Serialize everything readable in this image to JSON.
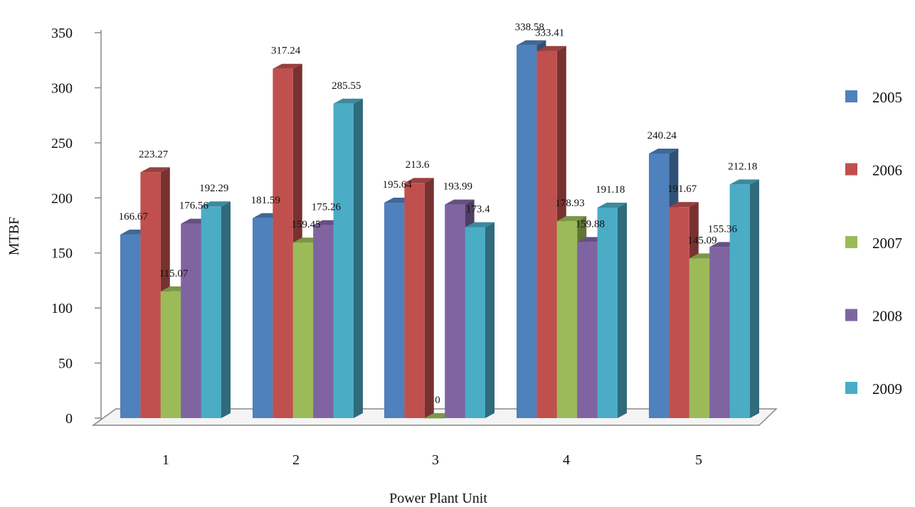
{
  "chart_data": {
    "type": "bar",
    "title": "",
    "xlabel": "Power Plant Unit",
    "ylabel": "MTBF",
    "ylim": [
      0,
      350
    ],
    "yticks": [
      0,
      50,
      100,
      150,
      200,
      250,
      300,
      350
    ],
    "categories": [
      "1",
      "2",
      "3",
      "4",
      "5"
    ],
    "series": [
      {
        "name": "2005",
        "color": "#4F81BD",
        "values": [
          166.67,
          181.59,
          195.64,
          338.58,
          240.24
        ]
      },
      {
        "name": "2006",
        "color": "#C0504D",
        "values": [
          223.27,
          317.24,
          213.6,
          333.41,
          191.67
        ]
      },
      {
        "name": "2007",
        "color": "#9BBB59",
        "values": [
          115.07,
          159.45,
          0,
          178.93,
          145.09
        ]
      },
      {
        "name": "2008",
        "color": "#8064A2",
        "values": [
          176.56,
          175.26,
          193.99,
          159.88,
          155.36
        ]
      },
      {
        "name": "2009",
        "color": "#4BACC6",
        "values": [
          192.29,
          285.55,
          173.4,
          191.18,
          212.18
        ]
      }
    ],
    "legend_position": "right",
    "grid": false,
    "style": "3d-clustered-column"
  }
}
